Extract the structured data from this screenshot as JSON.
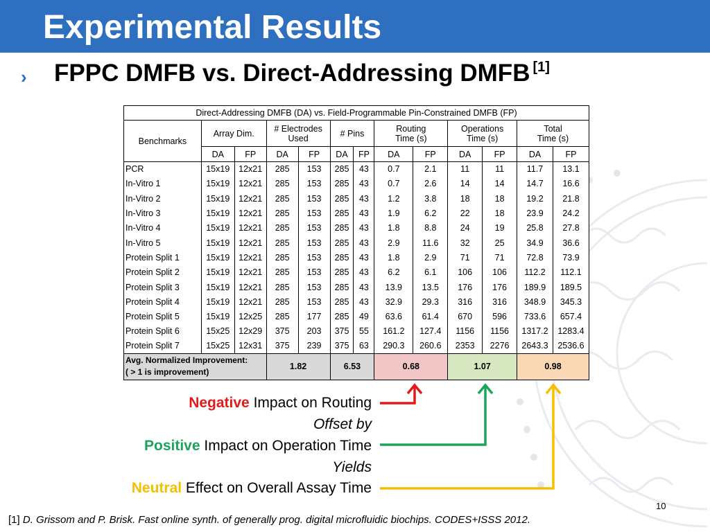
{
  "slide": {
    "title": "Experimental Results",
    "subtitle": "FPPC DMFB vs. Direct-Addressing DMFB",
    "subtitle_ref": "[1]",
    "page_number": "10"
  },
  "table": {
    "caption": "Direct-Addressing DMFB (DA) vs. Field-Programmable Pin-Constrained DMFB (FP)",
    "headers": {
      "benchmarks": "Benchmarks",
      "array_dim": "Array Dim.",
      "electrodes_line1": "# Electrodes",
      "electrodes_line2": "Used",
      "pins": "# Pins",
      "routing_line1": "Routing",
      "routing_line2": "Time (s)",
      "operations_line1": "Operations",
      "operations_line2": "Time (s)",
      "total_line1": "Total",
      "total_line2": "Time (s)",
      "da": "DA",
      "fp": "FP"
    },
    "rows": [
      {
        "name": "PCR",
        "v": [
          "15x19",
          "12x21",
          "285",
          "153",
          "285",
          "43",
          "0.7",
          "2.1",
          "11",
          "11",
          "11.7",
          "13.1"
        ]
      },
      {
        "name": "In-Vitro 1",
        "v": [
          "15x19",
          "12x21",
          "285",
          "153",
          "285",
          "43",
          "0.7",
          "2.6",
          "14",
          "14",
          "14.7",
          "16.6"
        ]
      },
      {
        "name": "In-Vitro 2",
        "v": [
          "15x19",
          "12x21",
          "285",
          "153",
          "285",
          "43",
          "1.2",
          "3.8",
          "18",
          "18",
          "19.2",
          "21.8"
        ]
      },
      {
        "name": "In-Vitro 3",
        "v": [
          "15x19",
          "12x21",
          "285",
          "153",
          "285",
          "43",
          "1.9",
          "6.2",
          "22",
          "18",
          "23.9",
          "24.2"
        ]
      },
      {
        "name": "In-Vitro 4",
        "v": [
          "15x19",
          "12x21",
          "285",
          "153",
          "285",
          "43",
          "1.8",
          "8.8",
          "24",
          "19",
          "25.8",
          "27.8"
        ]
      },
      {
        "name": "In-Vitro 5",
        "v": [
          "15x19",
          "12x21",
          "285",
          "153",
          "285",
          "43",
          "2.9",
          "11.6",
          "32",
          "25",
          "34.9",
          "36.6"
        ]
      },
      {
        "name": "Protein Split 1",
        "v": [
          "15x19",
          "12x21",
          "285",
          "153",
          "285",
          "43",
          "1.8",
          "2.9",
          "71",
          "71",
          "72.8",
          "73.9"
        ]
      },
      {
        "name": "Protein Split 2",
        "v": [
          "15x19",
          "12x21",
          "285",
          "153",
          "285",
          "43",
          "6.2",
          "6.1",
          "106",
          "106",
          "112.2",
          "112.1"
        ]
      },
      {
        "name": "Protein Split 3",
        "v": [
          "15x19",
          "12x21",
          "285",
          "153",
          "285",
          "43",
          "13.9",
          "13.5",
          "176",
          "176",
          "189.9",
          "189.5"
        ]
      },
      {
        "name": "Protein Split 4",
        "v": [
          "15x19",
          "12x21",
          "285",
          "153",
          "285",
          "43",
          "32.9",
          "29.3",
          "316",
          "316",
          "348.9",
          "345.3"
        ]
      },
      {
        "name": "Protein Split 5",
        "v": [
          "15x19",
          "12x25",
          "285",
          "177",
          "285",
          "49",
          "63.6",
          "61.4",
          "670",
          "596",
          "733.6",
          "657.4"
        ]
      },
      {
        "name": "Protein Split 6",
        "v": [
          "15x25",
          "12x29",
          "375",
          "203",
          "375",
          "55",
          "161.2",
          "127.4",
          "1156",
          "1156",
          "1317.2",
          "1283.4"
        ]
      },
      {
        "name": "Protein Split 7",
        "v": [
          "15x25",
          "12x31",
          "375",
          "239",
          "375",
          "63",
          "290.3",
          "260.6",
          "2353",
          "2276",
          "2643.3",
          "2536.6"
        ]
      }
    ],
    "footer": {
      "label_line1": "Avg. Normalized Improvement:",
      "label_line2": "( > 1 is improvement)",
      "electrodes": "1.82",
      "pins": "6.53",
      "routing": "0.68",
      "operations": "1.07",
      "total": "0.98"
    }
  },
  "annotations": {
    "negative_kw": "Negative",
    "negative_rest": " Impact on Routing",
    "offset_by": "Offset by",
    "positive_kw": "Positive",
    "positive_rest": " Impact on Operation Time",
    "yields": "Yields",
    "neutral_kw": "Neutral",
    "neutral_rest": " Effect on Overall Assay Time"
  },
  "colors": {
    "title_bar": "#2e6fbf",
    "negative": "#e31a1a",
    "positive": "#19a65b",
    "neutral": "#f5c000"
  },
  "citation": {
    "ref": "[1]",
    "text": "D. Grissom and P. Brisk. Fast online synth. of generally prog. digital microfluidic biochips. CODES+ISSS 2012."
  }
}
